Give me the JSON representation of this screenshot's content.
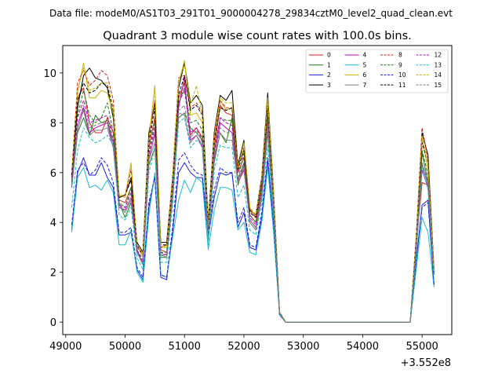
{
  "suptitle": "Data file: modeM0/AS1T03_291T01_9000004278_29834cztM0_level2_quad_clean.evt",
  "chart_data": {
    "type": "line",
    "title": "Quadrant 3 module wise count rates with 100.0s bins.",
    "xlabel": "",
    "ylabel": "",
    "x_offset_label": "+3.552e8",
    "xlim": [
      48950,
      55500
    ],
    "ylim": [
      -0.5,
      11.1
    ],
    "x_ticks": [
      49000,
      50000,
      51000,
      52000,
      53000,
      54000,
      55000
    ],
    "x_tick_labels": [
      "49000",
      "50000",
      "51000",
      "52000",
      "53000",
      "54000",
      "55000"
    ],
    "y_ticks": [
      0,
      2,
      4,
      6,
      8,
      10
    ],
    "y_tick_labels": [
      "0",
      "2",
      "4",
      "6",
      "8",
      "10"
    ],
    "grid": false,
    "legend_position": "top-right",
    "x": [
      49100,
      49200,
      49300,
      49400,
      49500,
      49600,
      49700,
      49800,
      49900,
      50000,
      50100,
      50200,
      50300,
      50400,
      50500,
      50600,
      50700,
      50800,
      50900,
      51000,
      51100,
      51200,
      51300,
      51400,
      51500,
      51600,
      51700,
      51800,
      51900,
      52000,
      52100,
      52200,
      52300,
      52400,
      52500,
      52600,
      52700,
      52800,
      52900,
      53000,
      53100,
      53200,
      53300,
      53400,
      53500,
      53600,
      53700,
      53800,
      53900,
      54000,
      54100,
      54200,
      54300,
      54400,
      54500,
      54600,
      54700,
      54800,
      54900,
      55000,
      55100,
      55200
    ],
    "series": [
      {
        "name": "0",
        "color": "#d62020",
        "dash": "solid",
        "values": [
          5.8,
          9.0,
          9.4,
          8.0,
          7.6,
          7.6,
          8.2,
          7.6,
          4.9,
          4.8,
          5.4,
          2.8,
          2.4,
          7.0,
          8.2,
          2.9,
          2.8,
          5.2,
          9.0,
          9.6,
          7.5,
          7.8,
          7.4,
          3.8,
          7.0,
          8.7,
          8.4,
          8.3,
          6.0,
          6.6,
          4.3,
          4.0,
          5.4,
          8.2,
          4.9,
          0.4,
          0.0,
          0,
          0,
          0,
          0,
          0,
          0,
          0,
          0,
          0,
          0,
          0,
          0,
          0,
          0,
          0,
          0,
          0,
          0,
          0,
          0,
          0,
          3.1,
          5.6,
          5.5,
          2.0
        ]
      },
      {
        "name": "1",
        "color": "#1a7a1a",
        "dash": "solid",
        "values": [
          5.4,
          7.6,
          8.2,
          7.5,
          8.3,
          8.0,
          8.1,
          7.2,
          4.8,
          4.2,
          4.8,
          2.9,
          2.3,
          6.3,
          7.0,
          2.6,
          2.6,
          5.0,
          8.2,
          8.4,
          7.8,
          7.6,
          7.3,
          3.3,
          6.4,
          7.6,
          7.2,
          8.2,
          5.5,
          6.4,
          4.0,
          3.7,
          5.0,
          7.6,
          4.4,
          0.35,
          0.0,
          0,
          0,
          0,
          0,
          0,
          0,
          0,
          0,
          0,
          0,
          0,
          0,
          0,
          0,
          0,
          0,
          0,
          0,
          0,
          0,
          0,
          2.9,
          6.8,
          5.6,
          2.0
        ]
      },
      {
        "name": "2",
        "color": "#1f1fd6",
        "dash": "solid",
        "values": [
          3.7,
          6.0,
          6.6,
          5.9,
          5.9,
          6.4,
          5.8,
          5.4,
          3.5,
          3.5,
          3.6,
          2.1,
          1.7,
          4.6,
          5.9,
          1.8,
          1.7,
          3.6,
          6.0,
          6.4,
          6.0,
          5.8,
          5.8,
          3.4,
          5.0,
          6.0,
          5.9,
          6.0,
          3.8,
          4.4,
          3.0,
          2.9,
          4.2,
          6.5,
          3.9,
          0.3,
          0.0,
          0,
          0,
          0,
          0,
          0,
          0,
          0,
          0,
          0,
          0,
          0,
          0,
          0,
          0,
          0,
          0,
          0,
          0,
          0,
          0,
          0,
          2.4,
          4.7,
          4.9,
          1.5
        ]
      },
      {
        "name": "3",
        "color": "#000000",
        "dash": "solid",
        "values": [
          5.9,
          8.6,
          9.9,
          10.2,
          9.8,
          9.7,
          9.4,
          8.2,
          5.0,
          5.1,
          5.8,
          3.2,
          2.8,
          7.6,
          8.8,
          3.2,
          3.2,
          5.8,
          9.4,
          10.4,
          8.8,
          9.1,
          8.7,
          4.0,
          7.6,
          9.1,
          8.9,
          9.3,
          6.3,
          7.3,
          4.5,
          4.3,
          5.8,
          9.2,
          5.2,
          0.4,
          0.0,
          0,
          0,
          0,
          0,
          0,
          0,
          0,
          0,
          0,
          0,
          0,
          0,
          0,
          0,
          0,
          0,
          0,
          0,
          0,
          0,
          0,
          3.4,
          7.6,
          6.7,
          2.1
        ]
      },
      {
        "name": "4",
        "color": "#c000c0",
        "dash": "solid",
        "values": [
          5.7,
          7.9,
          8.6,
          7.6,
          7.8,
          7.9,
          8.0,
          7.0,
          4.6,
          4.5,
          5.0,
          2.9,
          2.3,
          6.5,
          7.6,
          2.7,
          2.7,
          5.0,
          8.6,
          9.8,
          7.3,
          7.5,
          7.0,
          3.5,
          6.6,
          8.0,
          7.8,
          7.6,
          5.6,
          6.1,
          4.1,
          3.8,
          5.1,
          7.8,
          4.6,
          0.35,
          0.0,
          0,
          0,
          0,
          0,
          0,
          0,
          0,
          0,
          0,
          0,
          0,
          0,
          0,
          0,
          0,
          0,
          0,
          0,
          0,
          0,
          0,
          3.0,
          6.1,
          5.4,
          1.9
        ]
      },
      {
        "name": "5",
        "color": "#17becf",
        "dash": "solid",
        "values": [
          3.6,
          5.8,
          6.2,
          5.4,
          5.5,
          5.3,
          5.7,
          5.2,
          3.1,
          3.1,
          3.7,
          2.0,
          1.6,
          4.3,
          6.0,
          1.9,
          1.8,
          3.4,
          4.9,
          5.7,
          5.2,
          5.8,
          5.6,
          2.9,
          4.5,
          5.4,
          5.4,
          5.3,
          3.7,
          4.0,
          2.8,
          2.7,
          4.0,
          6.2,
          3.6,
          0.3,
          0.0,
          0,
          0,
          0,
          0,
          0,
          0,
          0,
          0,
          0,
          0,
          0,
          0,
          0,
          0,
          0,
          0,
          0,
          0,
          0,
          0,
          0,
          2.1,
          4.2,
          3.6,
          1.4
        ]
      },
      {
        "name": "6",
        "color": "#c8b400",
        "dash": "solid",
        "values": [
          6.0,
          9.2,
          10.4,
          9.0,
          9.0,
          9.3,
          9.2,
          8.4,
          5.1,
          5.0,
          6.4,
          3.1,
          2.6,
          7.3,
          9.5,
          3.0,
          3.0,
          5.7,
          9.6,
          10.5,
          8.3,
          8.4,
          8.0,
          3.9,
          7.2,
          8.9,
          8.5,
          8.6,
          6.1,
          7.2,
          4.6,
          4.2,
          5.6,
          9.0,
          5.1,
          0.4,
          0.0,
          0,
          0,
          0,
          0,
          0,
          0,
          0,
          0,
          0,
          0,
          0,
          0,
          0,
          0,
          0,
          0,
          0,
          0,
          0,
          0,
          0,
          3.3,
          7.4,
          6.1,
          2.1
        ]
      },
      {
        "name": "7",
        "color": "#7f7f7f",
        "dash": "solid",
        "values": [
          5.5,
          7.7,
          8.5,
          7.5,
          7.7,
          7.7,
          7.8,
          7.0,
          4.7,
          4.4,
          4.9,
          2.8,
          2.3,
          6.5,
          7.2,
          2.7,
          2.6,
          5.0,
          8.4,
          8.3,
          7.2,
          7.5,
          7.1,
          3.4,
          6.5,
          7.6,
          7.3,
          7.3,
          5.6,
          6.2,
          4.0,
          3.7,
          5.0,
          7.7,
          4.5,
          0.35,
          0.0,
          0,
          0,
          0,
          0,
          0,
          0,
          0,
          0,
          0,
          0,
          0,
          0,
          0,
          0,
          0,
          0,
          0,
          0,
          0,
          0,
          0,
          2.9,
          6.3,
          5.5,
          1.9
        ]
      },
      {
        "name": "8",
        "color": "#d62020",
        "dash": "dashed",
        "values": [
          5.9,
          9.6,
          10.1,
          9.5,
          9.7,
          10.1,
          9.9,
          8.9,
          5.0,
          5.1,
          6.1,
          3.0,
          2.7,
          7.3,
          8.9,
          3.0,
          3.1,
          5.9,
          9.8,
          9.9,
          8.6,
          8.8,
          8.4,
          3.8,
          7.6,
          8.9,
          8.6,
          8.6,
          6.2,
          7.0,
          4.5,
          4.2,
          5.7,
          8.6,
          5.0,
          0.4,
          0.0,
          0,
          0,
          0,
          0,
          0,
          0,
          0,
          0,
          0,
          0,
          0,
          0,
          0,
          0,
          0,
          0,
          0,
          0,
          0,
          0,
          0,
          3.4,
          7.8,
          6.5,
          2.1
        ]
      },
      {
        "name": "9",
        "color": "#1a7a1a",
        "dash": "dashed",
        "values": [
          5.6,
          8.3,
          9.3,
          8.3,
          8.0,
          8.2,
          8.8,
          7.6,
          4.8,
          4.6,
          5.4,
          2.9,
          2.5,
          6.8,
          8.0,
          2.8,
          2.8,
          5.3,
          8.8,
          9.4,
          8.0,
          8.1,
          7.7,
          3.6,
          6.9,
          8.2,
          8.1,
          8.1,
          5.7,
          6.8,
          4.3,
          4.0,
          5.4,
          8.4,
          4.8,
          0.4,
          0.0,
          0,
          0,
          0,
          0,
          0,
          0,
          0,
          0,
          0,
          0,
          0,
          0,
          0,
          0,
          0,
          0,
          0,
          0,
          0,
          0,
          0,
          3.2,
          6.9,
          5.9,
          2.0
        ]
      },
      {
        "name": "10",
        "color": "#1f1fd6",
        "dash": "dashed",
        "values": [
          3.9,
          6.1,
          6.4,
          5.9,
          6.1,
          6.6,
          6.3,
          5.6,
          3.6,
          3.6,
          3.8,
          2.2,
          1.8,
          4.8,
          5.8,
          1.9,
          1.8,
          3.8,
          6.5,
          6.8,
          6.3,
          6.0,
          5.9,
          3.6,
          5.3,
          6.2,
          6.0,
          6.0,
          4.0,
          4.6,
          3.1,
          3.0,
          4.4,
          6.6,
          4.0,
          0.3,
          0.0,
          0,
          0,
          0,
          0,
          0,
          0,
          0,
          0,
          0,
          0,
          0,
          0,
          0,
          0,
          0,
          0,
          0,
          0,
          0,
          0,
          0,
          2.5,
          4.6,
          4.8,
          1.5
        ]
      },
      {
        "name": "11",
        "color": "#000000",
        "dash": "dashed",
        "values": [
          5.9,
          8.9,
          9.6,
          9.2,
          9.3,
          9.6,
          9.5,
          8.5,
          5.0,
          5.1,
          5.7,
          3.1,
          2.7,
          7.2,
          8.6,
          3.1,
          3.1,
          5.6,
          9.1,
          9.9,
          8.5,
          8.7,
          8.3,
          3.9,
          7.3,
          8.6,
          8.5,
          8.6,
          6.1,
          6.9,
          4.4,
          4.2,
          5.6,
          8.7,
          5.0,
          0.4,
          0.0,
          0,
          0,
          0,
          0,
          0,
          0,
          0,
          0,
          0,
          0,
          0,
          0,
          0,
          0,
          0,
          0,
          0,
          0,
          0,
          0,
          0,
          3.3,
          7.2,
          6.4,
          2.1
        ]
      },
      {
        "name": "12",
        "color": "#c000c0",
        "dash": "dashed",
        "values": [
          5.6,
          8.2,
          8.9,
          8.0,
          8.1,
          8.2,
          8.3,
          7.3,
          4.7,
          4.6,
          5.2,
          2.9,
          2.4,
          6.7,
          7.8,
          2.8,
          2.7,
          5.2,
          8.8,
          9.3,
          7.6,
          7.8,
          7.3,
          3.6,
          6.8,
          8.2,
          8.0,
          7.9,
          5.7,
          6.4,
          4.2,
          3.9,
          5.2,
          8.0,
          4.7,
          0.35,
          0.0,
          0,
          0,
          0,
          0,
          0,
          0,
          0,
          0,
          0,
          0,
          0,
          0,
          0,
          0,
          0,
          0,
          0,
          0,
          0,
          0,
          0,
          3.1,
          6.4,
          5.6,
          1.9
        ]
      },
      {
        "name": "13",
        "color": "#17becf",
        "dash": "dashed",
        "values": [
          4.6,
          6.9,
          7.8,
          7.4,
          7.2,
          7.3,
          7.5,
          7.1,
          4.3,
          4.1,
          4.6,
          2.6,
          2.1,
          6.0,
          7.0,
          2.4,
          2.4,
          4.7,
          8.0,
          8.2,
          7.0,
          7.3,
          7.1,
          3.1,
          6.1,
          7.1,
          7.0,
          7.0,
          5.0,
          5.5,
          3.7,
          3.5,
          4.8,
          7.1,
          4.2,
          0.35,
          0.0,
          0,
          0,
          0,
          0,
          0,
          0,
          0,
          0,
          0,
          0,
          0,
          0,
          0,
          0,
          0,
          0,
          0,
          0,
          0,
          0,
          0,
          2.6,
          6.2,
          5.3,
          1.7
        ]
      },
      {
        "name": "14",
        "color": "#c8b400",
        "dash": "dashed",
        "values": [
          6.0,
          9.3,
          10.2,
          9.3,
          9.4,
          9.6,
          9.6,
          8.6,
          5.1,
          5.1,
          6.3,
          3.1,
          2.7,
          7.3,
          9.4,
          3.1,
          3.0,
          5.8,
          9.7,
          10.3,
          8.7,
          9.5,
          8.3,
          3.9,
          7.4,
          9.0,
          8.8,
          8.8,
          6.2,
          7.2,
          4.6,
          4.3,
          5.7,
          8.9,
          5.1,
          0.4,
          0.0,
          0,
          0,
          0,
          0,
          0,
          0,
          0,
          0,
          0,
          0,
          0,
          0,
          0,
          0,
          0,
          0,
          0,
          0,
          0,
          0,
          0,
          3.4,
          7.5,
          6.3,
          2.1
        ]
      },
      {
        "name": "15",
        "color": "#7f7f7f",
        "dash": "dashed",
        "values": [
          5.5,
          7.9,
          8.7,
          7.8,
          7.9,
          8.0,
          8.0,
          7.2,
          4.7,
          4.5,
          5.0,
          2.8,
          2.4,
          6.6,
          7.5,
          2.7,
          2.7,
          5.1,
          8.5,
          8.7,
          7.4,
          7.7,
          7.2,
          3.5,
          6.6,
          7.8,
          7.6,
          7.6,
          5.6,
          6.3,
          4.1,
          3.8,
          5.1,
          7.9,
          4.6,
          0.35,
          0.0,
          0,
          0,
          0,
          0,
          0,
          0,
          0,
          0,
          0,
          0,
          0,
          0,
          0,
          0,
          0,
          0,
          0,
          0,
          0,
          0,
          0,
          3.0,
          6.4,
          5.6,
          1.9
        ]
      }
    ]
  }
}
